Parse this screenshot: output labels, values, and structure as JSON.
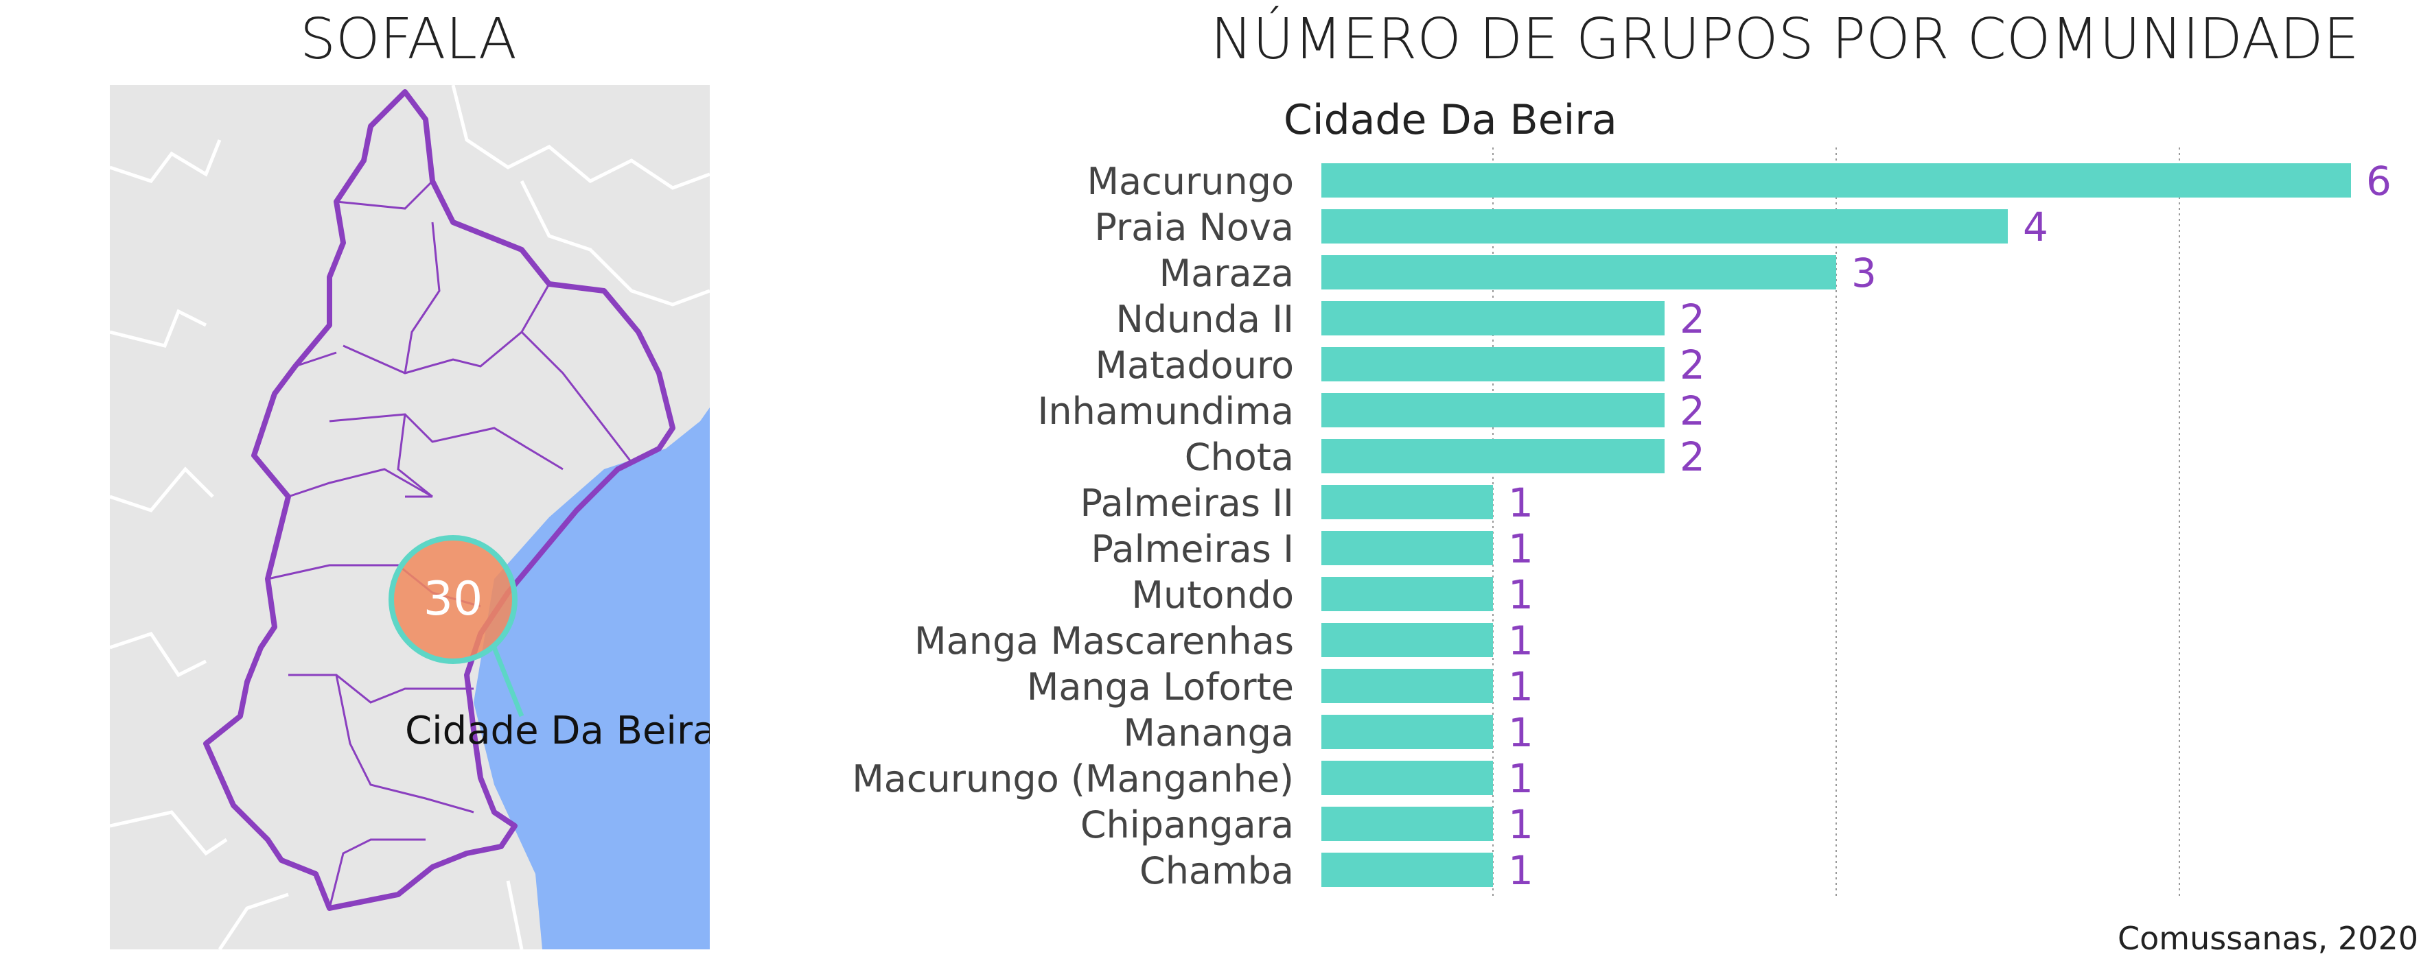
{
  "map": {
    "title": "SOFALA",
    "marker_value": "30",
    "marker_label": "Cidade Da Beira",
    "colors": {
      "land": "#e6e6e6",
      "sea": "#8ab4f8",
      "border": "#8a3fbf",
      "marker": "#f08a5d",
      "marker_ring": "#5dd6c6"
    }
  },
  "chart": {
    "title": "NÚMERO DE GRUPOS POR COMUNIDADE",
    "source": "Comussanas, 2020"
  },
  "chart_data": {
    "type": "bar",
    "orientation": "horizontal",
    "subtitle": "Cidade Da Beira",
    "categories": [
      "Macurungo",
      "Praia Nova",
      "Maraza",
      "Ndunda II",
      "Matadouro",
      "Inhamundima",
      "Chota",
      "Palmeiras II",
      "Palmeiras I",
      "Mutondo",
      "Manga Mascarenhas",
      "Manga Loforte",
      "Mananga",
      "Macurungo (Manganhe)",
      "Chipangara",
      "Chamba"
    ],
    "values": [
      6,
      4,
      3,
      2,
      2,
      2,
      2,
      1,
      1,
      1,
      1,
      1,
      1,
      1,
      1,
      1
    ],
    "xlim": [
      0,
      6
    ],
    "gridlines": [
      1,
      3,
      5
    ],
    "bar_color": "#5dd6c6",
    "label_color": "#8a3fbf",
    "grid": true
  }
}
